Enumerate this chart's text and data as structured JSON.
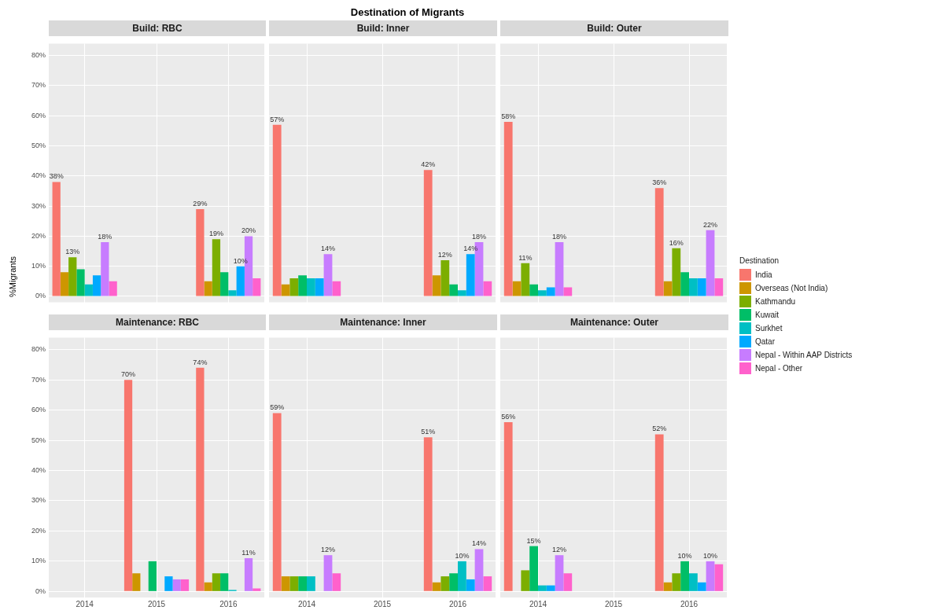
{
  "chart_data": [
    {
      "type": "other",
      "title": "Destination of Migrants"
    },
    {
      "type": "bar",
      "subtitle": "Build: RBC",
      "ylabel": "%Migrants",
      "categories": [
        "2014",
        "2015",
        "2016"
      ],
      "ylim": [
        -2,
        84
      ],
      "yticks": [
        {
          "value": 0,
          "label": "0%"
        },
        {
          "value": 10,
          "label": "10%"
        },
        {
          "value": 20,
          "label": "20%"
        },
        {
          "value": 30,
          "label": "30%"
        },
        {
          "value": 40,
          "label": "40%"
        },
        {
          "value": 50,
          "label": "50%"
        },
        {
          "value": 60,
          "label": "60%"
        },
        {
          "value": 70,
          "label": "70%"
        },
        {
          "value": 80,
          "label": "80%"
        }
      ],
      "grid": true,
      "tick_labels": "y",
      "series": [
        {
          "color": "#f8766d",
          "values": [
            38,
            null,
            29
          ],
          "value_labels": [
            "38%",
            null,
            "29%"
          ]
        },
        {
          "color": "#cd9600",
          "values": [
            8,
            null,
            5
          ]
        },
        {
          "color": "#7cae00",
          "values": [
            13,
            null,
            19
          ],
          "value_labels": [
            "13%",
            null,
            "19%"
          ]
        },
        {
          "color": "#00be67",
          "values": [
            9,
            null,
            8
          ]
        },
        {
          "color": "#00bfc4",
          "values": [
            4,
            null,
            2
          ]
        },
        {
          "color": "#00a9ff",
          "values": [
            7,
            null,
            10
          ],
          "value_labels": [
            null,
            null,
            "10%"
          ]
        },
        {
          "color": "#c77cff",
          "values": [
            18,
            null,
            20
          ],
          "value_labels": [
            "18%",
            null,
            "20%"
          ]
        },
        {
          "color": "#ff61cc",
          "values": [
            5,
            null,
            6
          ]
        }
      ]
    },
    {
      "type": "bar",
      "subtitle": "Build: Inner",
      "categories": [
        "2014",
        "2015",
        "2016"
      ],
      "ylim": [
        -2,
        84
      ],
      "yticks": [
        0,
        10,
        20,
        30,
        40,
        50,
        60,
        70,
        80
      ],
      "grid": true,
      "tick_labels": false,
      "series": [
        {
          "color": "#f8766d",
          "values": [
            57,
            null,
            42
          ],
          "value_labels": [
            "57%",
            null,
            "42%"
          ]
        },
        {
          "color": "#cd9600",
          "values": [
            4,
            null,
            7
          ]
        },
        {
          "color": "#7cae00",
          "values": [
            6,
            null,
            12
          ],
          "value_labels": [
            null,
            null,
            "12%"
          ]
        },
        {
          "color": "#00be67",
          "values": [
            7,
            null,
            4
          ]
        },
        {
          "color": "#00bfc4",
          "values": [
            6,
            null,
            2
          ]
        },
        {
          "color": "#00a9ff",
          "values": [
            6,
            null,
            14
          ],
          "value_labels": [
            null,
            null,
            "14%"
          ]
        },
        {
          "color": "#c77cff",
          "values": [
            14,
            null,
            18
          ],
          "value_labels": [
            "14%",
            null,
            "18%"
          ]
        },
        {
          "color": "#ff61cc",
          "values": [
            5,
            null,
            5
          ]
        }
      ]
    },
    {
      "type": "bar",
      "subtitle": "Build: Outer",
      "legend_title": "Destination",
      "legend": "right",
      "categories": [
        "2014",
        "2015",
        "2016"
      ],
      "ylim": [
        -2,
        84
      ],
      "yticks": [
        0,
        10,
        20,
        30,
        40,
        50,
        60,
        70,
        80
      ],
      "grid": true,
      "tick_labels": false,
      "series": [
        {
          "name": "India",
          "color": "#f8766d",
          "values": [
            58,
            null,
            36
          ],
          "value_labels": [
            "58%",
            null,
            "36%"
          ]
        },
        {
          "name": "Overseas (Not India)",
          "color": "#cd9600",
          "values": [
            5,
            null,
            5
          ]
        },
        {
          "name": "Kathmandu",
          "color": "#7cae00",
          "values": [
            11,
            null,
            16
          ],
          "value_labels": [
            "11%",
            null,
            "16%"
          ]
        },
        {
          "name": "Kuwait",
          "color": "#00be67",
          "values": [
            4,
            null,
            8
          ]
        },
        {
          "name": "Surkhet",
          "color": "#00bfc4",
          "values": [
            2,
            null,
            6
          ]
        },
        {
          "name": "Qatar",
          "color": "#00a9ff",
          "values": [
            3,
            null,
            6
          ]
        },
        {
          "name": "Nepal - Within AAP Districts",
          "color": "#c77cff",
          "values": [
            18,
            null,
            22
          ],
          "value_labels": [
            "18%",
            null,
            "22%"
          ]
        },
        {
          "name": "Nepal - Other",
          "color": "#ff61cc",
          "values": [
            3,
            null,
            6
          ]
        }
      ]
    },
    {
      "type": "bar",
      "subtitle": "Maintenance: RBC",
      "categories": [
        "2014",
        "2015",
        "2016"
      ],
      "ylim": [
        -2,
        84
      ],
      "yticks": [
        {
          "value": 0,
          "label": "0%"
        },
        {
          "value": 10,
          "label": "10%"
        },
        {
          "value": 20,
          "label": "20%"
        },
        {
          "value": 30,
          "label": "30%"
        },
        {
          "value": 40,
          "label": "40%"
        },
        {
          "value": 50,
          "label": "50%"
        },
        {
          "value": 60,
          "label": "60%"
        },
        {
          "value": 70,
          "label": "70%"
        },
        {
          "value": 80,
          "label": "80%"
        }
      ],
      "grid": true,
      "series": [
        {
          "color": "#f8766d",
          "values": [
            null,
            70,
            74
          ],
          "value_labels": [
            null,
            "70%",
            "74%"
          ]
        },
        {
          "color": "#cd9600",
          "values": [
            null,
            6,
            3
          ]
        },
        {
          "color": "#7cae00",
          "values": [
            null,
            0,
            6
          ]
        },
        {
          "color": "#00be67",
          "values": [
            null,
            10,
            6
          ]
        },
        {
          "color": "#00bfc4",
          "values": [
            null,
            0,
            0.5
          ]
        },
        {
          "color": "#00a9ff",
          "values": [
            null,
            5,
            0
          ]
        },
        {
          "color": "#c77cff",
          "values": [
            null,
            4,
            11
          ],
          "value_labels": [
            null,
            null,
            "11%"
          ]
        },
        {
          "color": "#ff61cc",
          "values": [
            null,
            4,
            1
          ]
        }
      ]
    },
    {
      "type": "bar",
      "subtitle": "Maintenance: Inner",
      "categories": [
        "2014",
        "2015",
        "2016"
      ],
      "ylim": [
        -2,
        84
      ],
      "yticks": [
        0,
        10,
        20,
        30,
        40,
        50,
        60,
        70,
        80
      ],
      "grid": true,
      "tick_labels": "x",
      "series": [
        {
          "color": "#f8766d",
          "values": [
            59,
            null,
            51
          ],
          "value_labels": [
            "59%",
            null,
            "51%"
          ]
        },
        {
          "color": "#cd9600",
          "values": [
            5,
            null,
            3
          ]
        },
        {
          "color": "#7cae00",
          "values": [
            5,
            null,
            5
          ]
        },
        {
          "color": "#00be67",
          "values": [
            5,
            null,
            6
          ]
        },
        {
          "color": "#00bfc4",
          "values": [
            5,
            null,
            10
          ],
          "value_labels": [
            null,
            null,
            "10%"
          ]
        },
        {
          "color": "#00a9ff",
          "values": [
            0,
            null,
            4
          ]
        },
        {
          "color": "#c77cff",
          "values": [
            12,
            null,
            14
          ],
          "value_labels": [
            "12%",
            null,
            "14%"
          ]
        },
        {
          "color": "#ff61cc",
          "values": [
            6,
            null,
            5
          ]
        }
      ]
    },
    {
      "type": "bar",
      "subtitle": "Maintenance: Outer",
      "categories": [
        "2014",
        "2015",
        "2016"
      ],
      "ylim": [
        -2,
        84
      ],
      "yticks": [
        0,
        10,
        20,
        30,
        40,
        50,
        60,
        70,
        80
      ],
      "grid": true,
      "tick_labels": "x",
      "series": [
        {
          "color": "#f8766d",
          "values": [
            56,
            null,
            52
          ],
          "value_labels": [
            "56%",
            null,
            "52%"
          ]
        },
        {
          "color": "#cd9600",
          "values": [
            0,
            null,
            3
          ]
        },
        {
          "color": "#7cae00",
          "values": [
            7,
            null,
            6
          ]
        },
        {
          "color": "#00be67",
          "values": [
            15,
            null,
            10
          ],
          "value_labels": [
            "15%",
            null,
            "10%"
          ]
        },
        {
          "color": "#00bfc4",
          "values": [
            2,
            null,
            6
          ]
        },
        {
          "color": "#00a9ff",
          "values": [
            2,
            null,
            3
          ]
        },
        {
          "color": "#c77cff",
          "values": [
            12,
            null,
            10
          ],
          "value_labels": [
            "12%",
            null,
            "10%"
          ]
        },
        {
          "color": "#ff61cc",
          "values": [
            6,
            null,
            9
          ]
        }
      ]
    }
  ]
}
